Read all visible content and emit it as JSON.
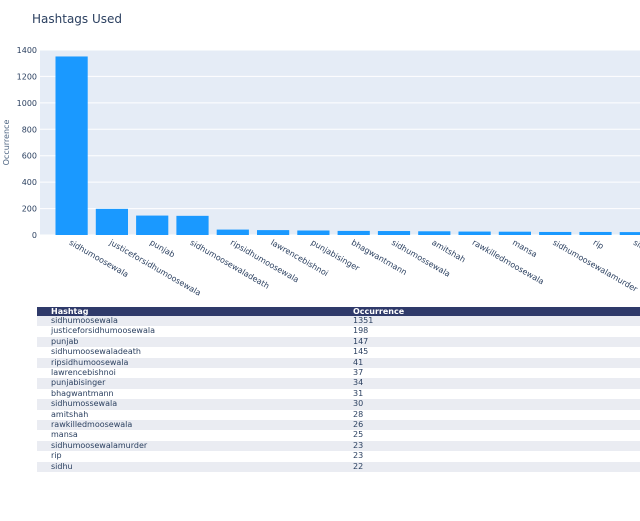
{
  "chart_data": {
    "type": "bar",
    "title": "Hashtags Used",
    "xlabel": "",
    "ylabel": "Occurrence",
    "ylim": [
      0,
      1400
    ],
    "yticks": [
      0,
      200,
      400,
      600,
      800,
      1000,
      1200,
      1400
    ],
    "bar_color": "#1a99ff",
    "plot_bg": "#e5ecf6",
    "categories": [
      "sidhumoosewala",
      "justiceforsidhumoosewala",
      "punjab",
      "sidhumoosewaladeath",
      "ripsidhumoosewala",
      "lawrencebishnoi",
      "punjabisinger",
      "bhagwantmann",
      "sidhumossewala",
      "amitshah",
      "rawkilledmoosewala",
      "mansa",
      "sidhumoosewalamurder",
      "rip",
      "sidhu"
    ],
    "values": [
      1351,
      198,
      147,
      145,
      41,
      37,
      34,
      31,
      30,
      28,
      26,
      25,
      23,
      23,
      22
    ]
  },
  "table": {
    "headers": [
      "Hashtag",
      "Occurrence"
    ],
    "header_color": "#2f3a6a",
    "rows": [
      [
        "sidhumoosewala",
        "1351"
      ],
      [
        "justiceforsidhumoosewala",
        "198"
      ],
      [
        "punjab",
        "147"
      ],
      [
        "sidhumoosewaladeath",
        "145"
      ],
      [
        "ripsidhumoosewala",
        "41"
      ],
      [
        "lawrencebishnoi",
        "37"
      ],
      [
        "punjabisinger",
        "34"
      ],
      [
        "bhagwantmann",
        "31"
      ],
      [
        "sidhumossewala",
        "30"
      ],
      [
        "amitshah",
        "28"
      ],
      [
        "rawkilledmoosewala",
        "26"
      ],
      [
        "mansa",
        "25"
      ],
      [
        "sidhumoosewalamurder",
        "23"
      ],
      [
        "rip",
        "23"
      ],
      [
        "sidhu",
        "22"
      ]
    ]
  }
}
